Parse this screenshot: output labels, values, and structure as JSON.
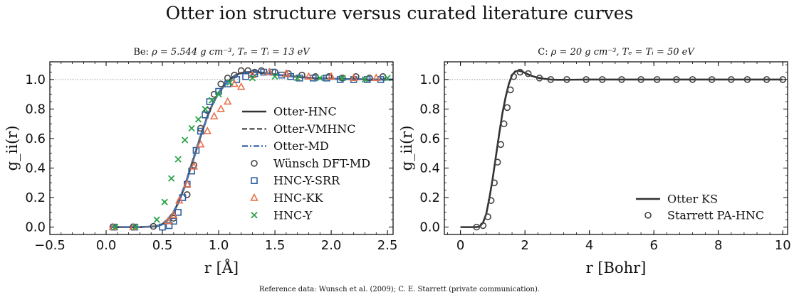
{
  "figure": {
    "title": "Otter ion structure versus curated literature curves",
    "footnote": "Reference data: Wunsch et al. (2009); C. E. Starrett (private communication)."
  },
  "colors": {
    "otter_hnc": "#333333",
    "otter_vmhnc": "#666666",
    "otter_md": "#4a74b4",
    "wunsch": "#444444",
    "hnc_y_srr": "#2f5f9e",
    "hnc_kk": "#e8704a",
    "hnc_y": "#2ca24a",
    "otter_ks": "#333333",
    "starrett": "#444444",
    "reference_line": "#999999"
  },
  "chart_data": [
    {
      "type": "line",
      "title_prefix": "Be: ",
      "title_math": "ρ = 5.544 g cm⁻³, Tₑ = Tᵢ = 13 eV",
      "xlabel": "r [Å]",
      "ylabel": "g_ii(r)",
      "xlim": [
        -0.5,
        2.55
      ],
      "ylim": [
        -0.05,
        1.12
      ],
      "xticks": [
        -0.5,
        0.0,
        0.5,
        1.0,
        1.5,
        2.0,
        2.5
      ],
      "yticks": [
        0.0,
        0.2,
        0.4,
        0.6,
        0.8,
        1.0
      ],
      "grid": false,
      "reference_y": 1.0,
      "legend_position": "center-right",
      "series": [
        {
          "name": "Otter-HNC",
          "kind": "line",
          "style": "solid",
          "color_key": "otter_hnc",
          "x": [
            0.05,
            0.3,
            0.45,
            0.5,
            0.55,
            0.6,
            0.65,
            0.7,
            0.75,
            0.8,
            0.85,
            0.9,
            0.95,
            1.0,
            1.05,
            1.1,
            1.15,
            1.2,
            1.25,
            1.3,
            1.35,
            1.4,
            1.45,
            1.5,
            1.6,
            1.7,
            1.8,
            1.9,
            2.0,
            2.2,
            2.4,
            2.55
          ],
          "y": [
            0.0,
            0.0,
            0.005,
            0.02,
            0.05,
            0.1,
            0.18,
            0.28,
            0.4,
            0.52,
            0.64,
            0.75,
            0.84,
            0.91,
            0.96,
            1.0,
            1.03,
            1.045,
            1.05,
            1.052,
            1.05,
            1.045,
            1.04,
            1.035,
            1.025,
            1.018,
            1.012,
            1.008,
            1.005,
            1.002,
            1.0,
            1.0
          ]
        },
        {
          "name": "Otter-VMHNC",
          "kind": "line",
          "style": "dashed",
          "color_key": "otter_vmhnc",
          "x": [
            0.05,
            0.3,
            0.45,
            0.5,
            0.55,
            0.6,
            0.65,
            0.7,
            0.75,
            0.8,
            0.85,
            0.9,
            0.95,
            1.0,
            1.05,
            1.1,
            1.15,
            1.2,
            1.25,
            1.3,
            1.35,
            1.4,
            1.45,
            1.5,
            1.6,
            1.7,
            1.8,
            1.9,
            2.0,
            2.2,
            2.4,
            2.55
          ],
          "y": [
            0.0,
            0.0,
            0.006,
            0.022,
            0.055,
            0.105,
            0.185,
            0.285,
            0.405,
            0.525,
            0.645,
            0.752,
            0.842,
            0.912,
            0.962,
            1.0,
            1.028,
            1.043,
            1.048,
            1.05,
            1.048,
            1.044,
            1.039,
            1.034,
            1.024,
            1.017,
            1.011,
            1.007,
            1.004,
            1.002,
            1.0,
            1.0
          ]
        },
        {
          "name": "Otter-MD",
          "kind": "line",
          "style": "dashdot",
          "color_key": "otter_md",
          "x": [
            0.05,
            0.3,
            0.45,
            0.5,
            0.55,
            0.6,
            0.65,
            0.7,
            0.75,
            0.8,
            0.85,
            0.9,
            0.95,
            1.0,
            1.05,
            1.1,
            1.15,
            1.2,
            1.25,
            1.3,
            1.35,
            1.4,
            1.45,
            1.5,
            1.6,
            1.7,
            1.8,
            1.9,
            2.0,
            2.2,
            2.4,
            2.55
          ],
          "y": [
            0.0,
            0.0,
            0.004,
            0.018,
            0.048,
            0.098,
            0.175,
            0.275,
            0.395,
            0.515,
            0.635,
            0.748,
            0.838,
            0.908,
            0.958,
            0.998,
            1.028,
            1.044,
            1.05,
            1.052,
            1.05,
            1.046,
            1.04,
            1.035,
            1.025,
            1.018,
            1.012,
            1.008,
            1.005,
            1.002,
            1.0,
            1.0
          ]
        },
        {
          "name": "Wünsch DFT-MD",
          "kind": "marker",
          "marker": "circle",
          "color_key": "wunsch",
          "x": [
            0.06,
            0.24,
            0.42,
            0.6,
            0.72,
            0.78,
            0.84,
            0.9,
            0.96,
            1.02,
            1.08,
            1.14,
            1.2,
            1.26,
            1.32,
            1.38,
            1.5,
            1.62,
            1.74,
            1.86,
            1.98,
            2.1,
            2.22,
            2.34,
            2.46
          ],
          "y": [
            0.0,
            0.0,
            0.005,
            0.06,
            0.22,
            0.42,
            0.67,
            0.79,
            0.9,
            0.97,
            1.01,
            1.03,
            1.06,
            1.06,
            1.05,
            1.06,
            1.05,
            1.04,
            1.03,
            1.02,
            1.02,
            1.01,
            1.02,
            1.01,
            1.02
          ]
        },
        {
          "name": "HNC-Y-SRR",
          "kind": "marker",
          "marker": "square",
          "color_key": "hnc_y_srr",
          "x": [
            0.07,
            0.25,
            0.5,
            0.56,
            0.6,
            0.64,
            0.68,
            0.72,
            0.76,
            0.8,
            0.84,
            0.88,
            0.92,
            1.0,
            1.08,
            1.16,
            1.24,
            1.32,
            1.4,
            1.48,
            1.56,
            1.64,
            1.72,
            1.84,
            1.96,
            2.08,
            2.2,
            2.32,
            2.44
          ],
          "y": [
            0.0,
            0.0,
            0.0,
            0.01,
            0.04,
            0.1,
            0.2,
            0.29,
            0.38,
            0.52,
            0.65,
            0.76,
            0.85,
            0.92,
            0.97,
            1.0,
            1.02,
            1.04,
            1.05,
            1.05,
            1.03,
            1.02,
            1.01,
            1.01,
            1.01,
            1.0,
            1.0,
            1.0,
            1.0
          ]
        },
        {
          "name": "HNC-KK",
          "kind": "marker",
          "marker": "triangle",
          "color_key": "hnc_kk",
          "x": [
            0.06,
            0.24,
            0.55,
            0.6,
            0.65,
            0.72,
            0.78,
            0.84,
            0.9,
            0.96,
            1.02,
            1.08,
            1.14,
            1.2,
            1.3,
            1.45,
            1.6,
            1.8,
            2.0,
            2.2,
            2.4
          ],
          "y": [
            0.0,
            0.0,
            0.04,
            0.08,
            0.18,
            0.29,
            0.41,
            0.56,
            0.65,
            0.75,
            0.8,
            0.85,
            0.97,
            0.95,
            1.03,
            1.05,
            1.04,
            1.02,
            1.02,
            1.01,
            1.01
          ]
        },
        {
          "name": "HNC-Y",
          "kind": "marker",
          "marker": "x",
          "color_key": "hnc_y",
          "x": [
            0.08,
            0.26,
            0.45,
            0.52,
            0.58,
            0.64,
            0.7,
            0.76,
            0.82,
            0.88,
            0.94,
            1.0,
            1.1,
            1.3,
            1.5,
            1.7,
            1.9,
            2.1,
            2.3,
            2.5
          ],
          "y": [
            0.0,
            0.0,
            0.05,
            0.17,
            0.33,
            0.46,
            0.59,
            0.67,
            0.73,
            0.8,
            0.86,
            0.9,
            0.98,
            1.01,
            1.02,
            1.01,
            1.01,
            1.01,
            1.0,
            1.01
          ]
        }
      ]
    },
    {
      "type": "line",
      "title_prefix": "C: ",
      "title_math": "ρ = 20 g cm⁻³, Tₑ = Tᵢ = 50 eV",
      "xlabel": "r [Bohr]",
      "ylabel": "g_ii(r)",
      "xlim": [
        -0.5,
        10.15
      ],
      "ylim": [
        -0.05,
        1.12
      ],
      "xticks": [
        0,
        2,
        4,
        6,
        8,
        10
      ],
      "yticks": [
        0.0,
        0.2,
        0.4,
        0.6,
        0.8,
        1.0
      ],
      "grid": false,
      "reference_y": 1.0,
      "legend_position": "lower-right",
      "series": [
        {
          "name": "Otter KS",
          "kind": "line",
          "style": "solid",
          "color_key": "otter_ks",
          "x": [
            0.0,
            0.5,
            0.6,
            0.7,
            0.8,
            0.9,
            1.0,
            1.1,
            1.2,
            1.3,
            1.4,
            1.5,
            1.6,
            1.7,
            1.8,
            1.9,
            2.0,
            2.1,
            2.2,
            2.4,
            2.6,
            2.8,
            3.0,
            3.5,
            4.0,
            5.0,
            6.0,
            8.0,
            10.0
          ],
          "y": [
            0.0,
            0.0,
            0.005,
            0.03,
            0.09,
            0.2,
            0.33,
            0.48,
            0.63,
            0.77,
            0.88,
            0.97,
            1.03,
            1.055,
            1.06,
            1.055,
            1.045,
            1.035,
            1.025,
            1.012,
            1.005,
            1.0,
            0.998,
            0.999,
            1.0,
            1.0,
            1.0,
            1.0,
            1.0
          ]
        },
        {
          "name": "Starrett PA-HNC",
          "kind": "marker",
          "marker": "circle",
          "color_key": "starrett",
          "x": [
            0.5,
            0.7,
            0.85,
            0.95,
            1.05,
            1.15,
            1.25,
            1.35,
            1.45,
            1.55,
            1.65,
            1.85,
            2.1,
            2.45,
            2.8,
            3.3,
            3.9,
            4.4,
            5.0,
            5.6,
            6.1,
            6.7,
            7.2,
            7.8,
            8.4,
            8.9,
            9.5,
            10.0
          ],
          "y": [
            0.0,
            0.01,
            0.07,
            0.18,
            0.3,
            0.44,
            0.56,
            0.7,
            0.81,
            0.93,
            1.02,
            1.05,
            1.04,
            1.01,
            1.0,
            1.0,
            1.0,
            1.0,
            1.0,
            1.0,
            1.0,
            1.0,
            1.0,
            1.0,
            1.0,
            1.0,
            1.0,
            1.0
          ]
        }
      ]
    }
  ]
}
